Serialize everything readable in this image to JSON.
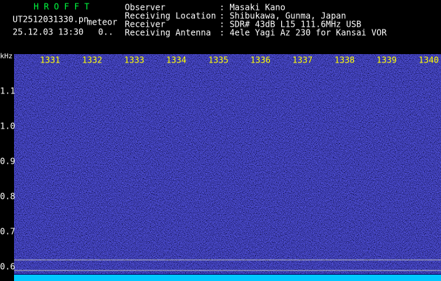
{
  "header": {
    "app": "H R O F F T",
    "file": "UT2512031330.pn",
    "mode": "meteor",
    "datetime": "25.12.03 13:30",
    "status": "0..",
    "fields": [
      {
        "label": "Observer",
        "value": ": Masaki Kano"
      },
      {
        "label": "Receiving Location",
        "value": ": Shibukawa, Gunma, Japan"
      },
      {
        "label": "Receiver",
        "value": ": SDR# 43dB L15 111.6MHz USB"
      },
      {
        "label": "Receiving Antenna",
        "value": ": 4ele Yagi Az 230 for Kansai VOR"
      }
    ]
  },
  "spectrogram": {
    "unit": "kHz",
    "freq_labels": [
      "1.1",
      "1.0",
      "0.9",
      "0.8",
      "0.7",
      "0.6"
    ],
    "time_labels": [
      "1331",
      "1332",
      "1333",
      "1334",
      "1335",
      "1336",
      "1337",
      "1338",
      "1339",
      "1340"
    ]
  }
}
